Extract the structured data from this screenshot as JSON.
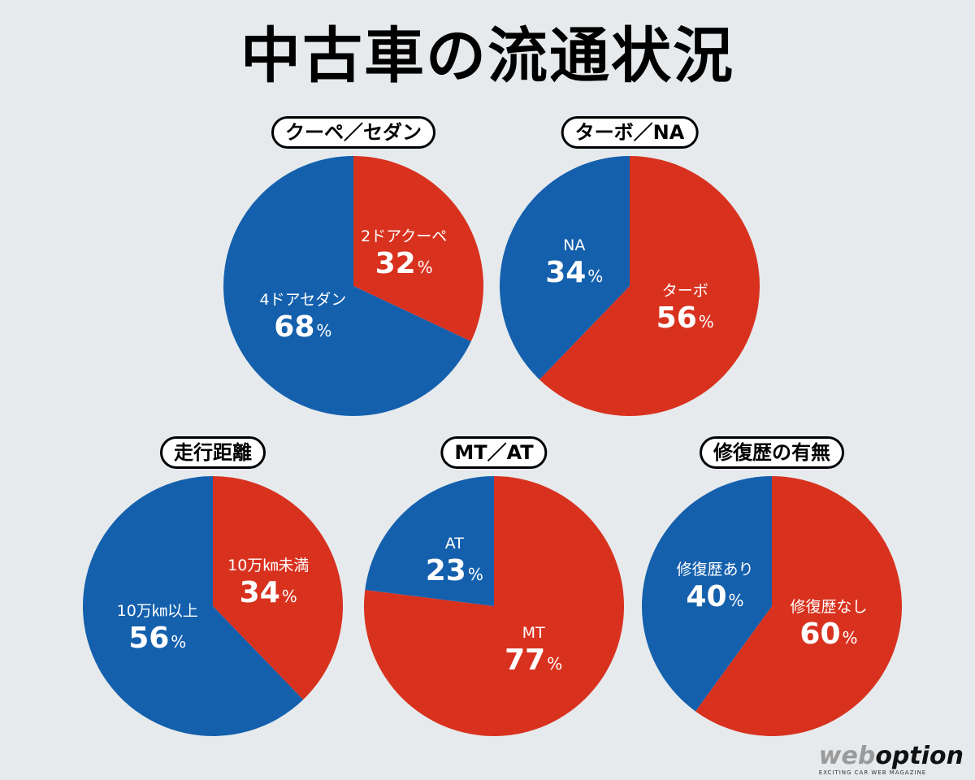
{
  "title": "中古車の流通状況",
  "colors": {
    "red": "#d8321f",
    "blue": "#1460ad"
  },
  "chart_data": [
    {
      "type": "pie",
      "title": "クーペ／セダン",
      "slices": [
        {
          "label": "2ドアクーペ",
          "value": 32,
          "color": "red"
        },
        {
          "label": "4ドアセダン",
          "value": 68,
          "color": "blue"
        }
      ]
    },
    {
      "type": "pie",
      "title": "ターボ／NA",
      "slices": [
        {
          "label": "ターボ",
          "value": 56,
          "color": "red"
        },
        {
          "label": "NA",
          "value": 34,
          "color": "blue"
        }
      ]
    },
    {
      "type": "pie",
      "title": "走行距離",
      "slices": [
        {
          "label": "10万㎞未満",
          "value": 34,
          "color": "red"
        },
        {
          "label": "10万㎞以上",
          "value": 56,
          "color": "blue"
        }
      ]
    },
    {
      "type": "pie",
      "title": "MT／AT",
      "slices": [
        {
          "label": "MT",
          "value": 77,
          "color": "red"
        },
        {
          "label": "AT",
          "value": 23,
          "color": "blue"
        }
      ]
    },
    {
      "type": "pie",
      "title": "修復歴の有無",
      "slices": [
        {
          "label": "修復歴なし",
          "value": 60,
          "color": "red"
        },
        {
          "label": "修復歴あり",
          "value": 40,
          "color": "blue"
        }
      ]
    }
  ],
  "percent_unit": "%",
  "logo": {
    "web": "web",
    "option": "option",
    "tagline": "EXCITING CAR WEB MAGAZINE"
  }
}
